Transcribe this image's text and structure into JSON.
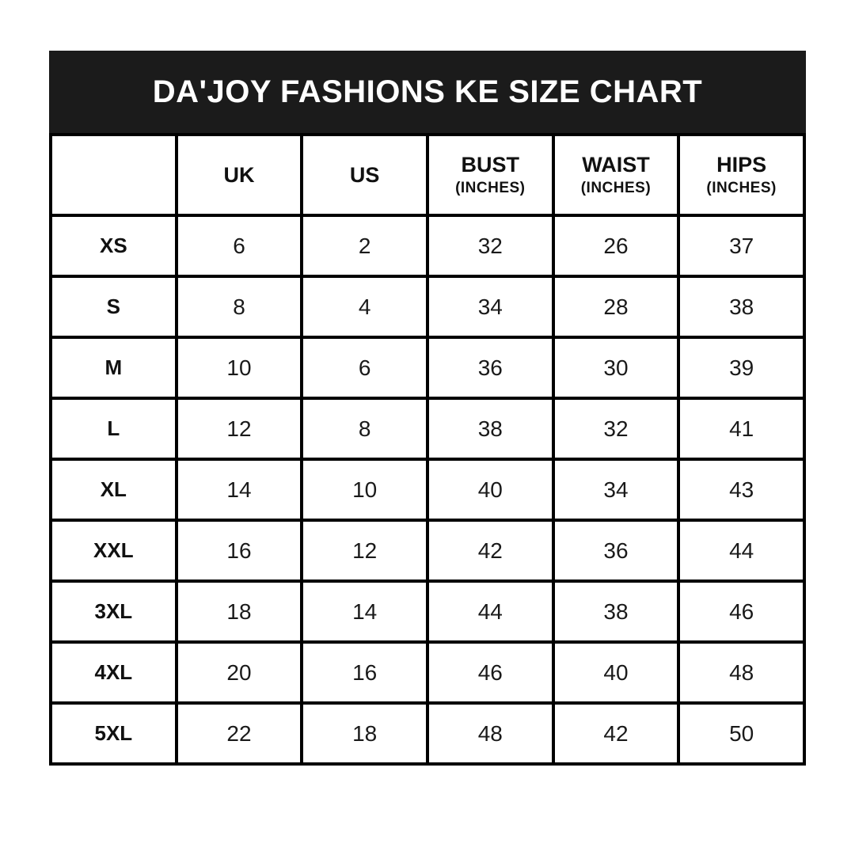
{
  "colors": {
    "background": "#ffffff",
    "header_bar": "#1b1b1b",
    "border": "#000000",
    "title_text": "#ffffff",
    "cell_text": "#1a1a1a"
  },
  "title": "DA'JOY FASHIONS KE SIZE CHART",
  "table": {
    "header": {
      "size": "",
      "uk": "UK",
      "us": "US",
      "bust": "BUST",
      "bust_sub": "(INCHES)",
      "waist": "WAIST",
      "waist_sub": "(INCHES)",
      "hips": "HIPS",
      "hips_sub": "(INCHES)"
    },
    "rows": [
      {
        "size": "XS",
        "uk": "6",
        "us": "2",
        "bust": "32",
        "waist": "26",
        "hips": "37"
      },
      {
        "size": "S",
        "uk": "8",
        "us": "4",
        "bust": "34",
        "waist": "28",
        "hips": "38"
      },
      {
        "size": "M",
        "uk": "10",
        "us": "6",
        "bust": "36",
        "waist": "30",
        "hips": "39"
      },
      {
        "size": "L",
        "uk": "12",
        "us": "8",
        "bust": "38",
        "waist": "32",
        "hips": "41"
      },
      {
        "size": "XL",
        "uk": "14",
        "us": "10",
        "bust": "40",
        "waist": "34",
        "hips": "43"
      },
      {
        "size": "XXL",
        "uk": "16",
        "us": "12",
        "bust": "42",
        "waist": "36",
        "hips": "44"
      },
      {
        "size": "3XL",
        "uk": "18",
        "us": "14",
        "bust": "44",
        "waist": "38",
        "hips": "46"
      },
      {
        "size": "4XL",
        "uk": "20",
        "us": "16",
        "bust": "46",
        "waist": "40",
        "hips": "48"
      },
      {
        "size": "5XL",
        "uk": "22",
        "us": "18",
        "bust": "48",
        "waist": "42",
        "hips": "50"
      }
    ]
  },
  "chart_data": {
    "type": "table",
    "title": "DA'JOY FASHIONS KE SIZE CHART",
    "columns": [
      "",
      "UK",
      "US",
      "BUST (INCHES)",
      "WAIST (INCHES)",
      "HIPS (INCHES)"
    ],
    "rows": [
      [
        "XS",
        6,
        2,
        32,
        26,
        37
      ],
      [
        "S",
        8,
        4,
        34,
        28,
        38
      ],
      [
        "M",
        10,
        6,
        36,
        30,
        39
      ],
      [
        "L",
        12,
        8,
        38,
        32,
        41
      ],
      [
        "XL",
        14,
        10,
        40,
        34,
        43
      ],
      [
        "XXL",
        16,
        12,
        42,
        36,
        44
      ],
      [
        "3XL",
        18,
        14,
        44,
        38,
        46
      ],
      [
        "4XL",
        20,
        16,
        46,
        40,
        48
      ],
      [
        "5XL",
        22,
        18,
        48,
        42,
        50
      ]
    ]
  }
}
